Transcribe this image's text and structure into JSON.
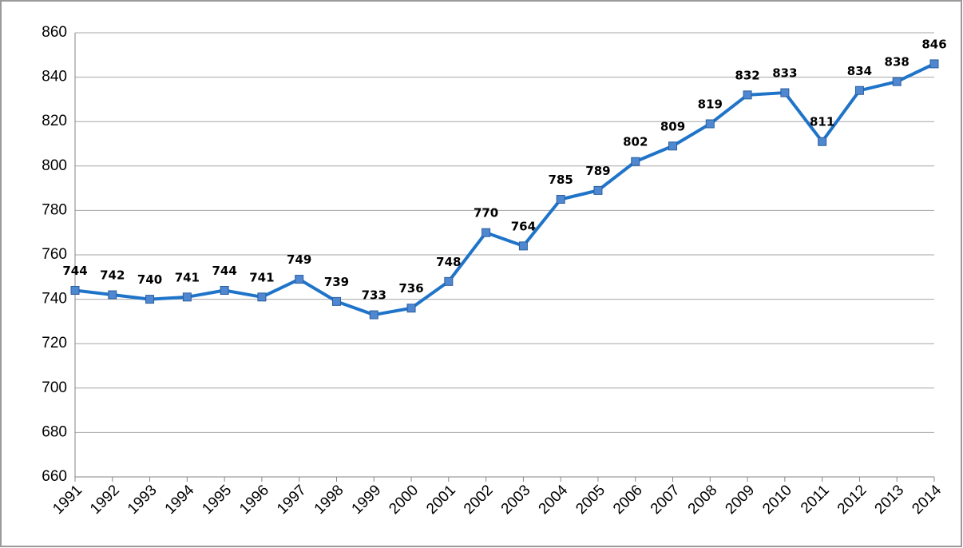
{
  "chart_data": {
    "type": "line",
    "categories": [
      "1991",
      "1992",
      "1993",
      "1994",
      "1995",
      "1996",
      "1997",
      "1998",
      "1999",
      "2000",
      "2001",
      "2002",
      "2003",
      "2004",
      "2005",
      "2006",
      "2007",
      "2008",
      "2009",
      "2010",
      "2011",
      "2012",
      "2013",
      "2014"
    ],
    "values": [
      744,
      742,
      740,
      741,
      744,
      741,
      749,
      739,
      733,
      736,
      748,
      770,
      764,
      785,
      789,
      802,
      809,
      819,
      832,
      833,
      811,
      834,
      838,
      846
    ],
    "color": "#1f74c9",
    "ylim": [
      660,
      860
    ],
    "yticks": [
      660,
      680,
      700,
      720,
      740,
      760,
      780,
      800,
      820,
      840,
      860
    ],
    "grid": true
  }
}
